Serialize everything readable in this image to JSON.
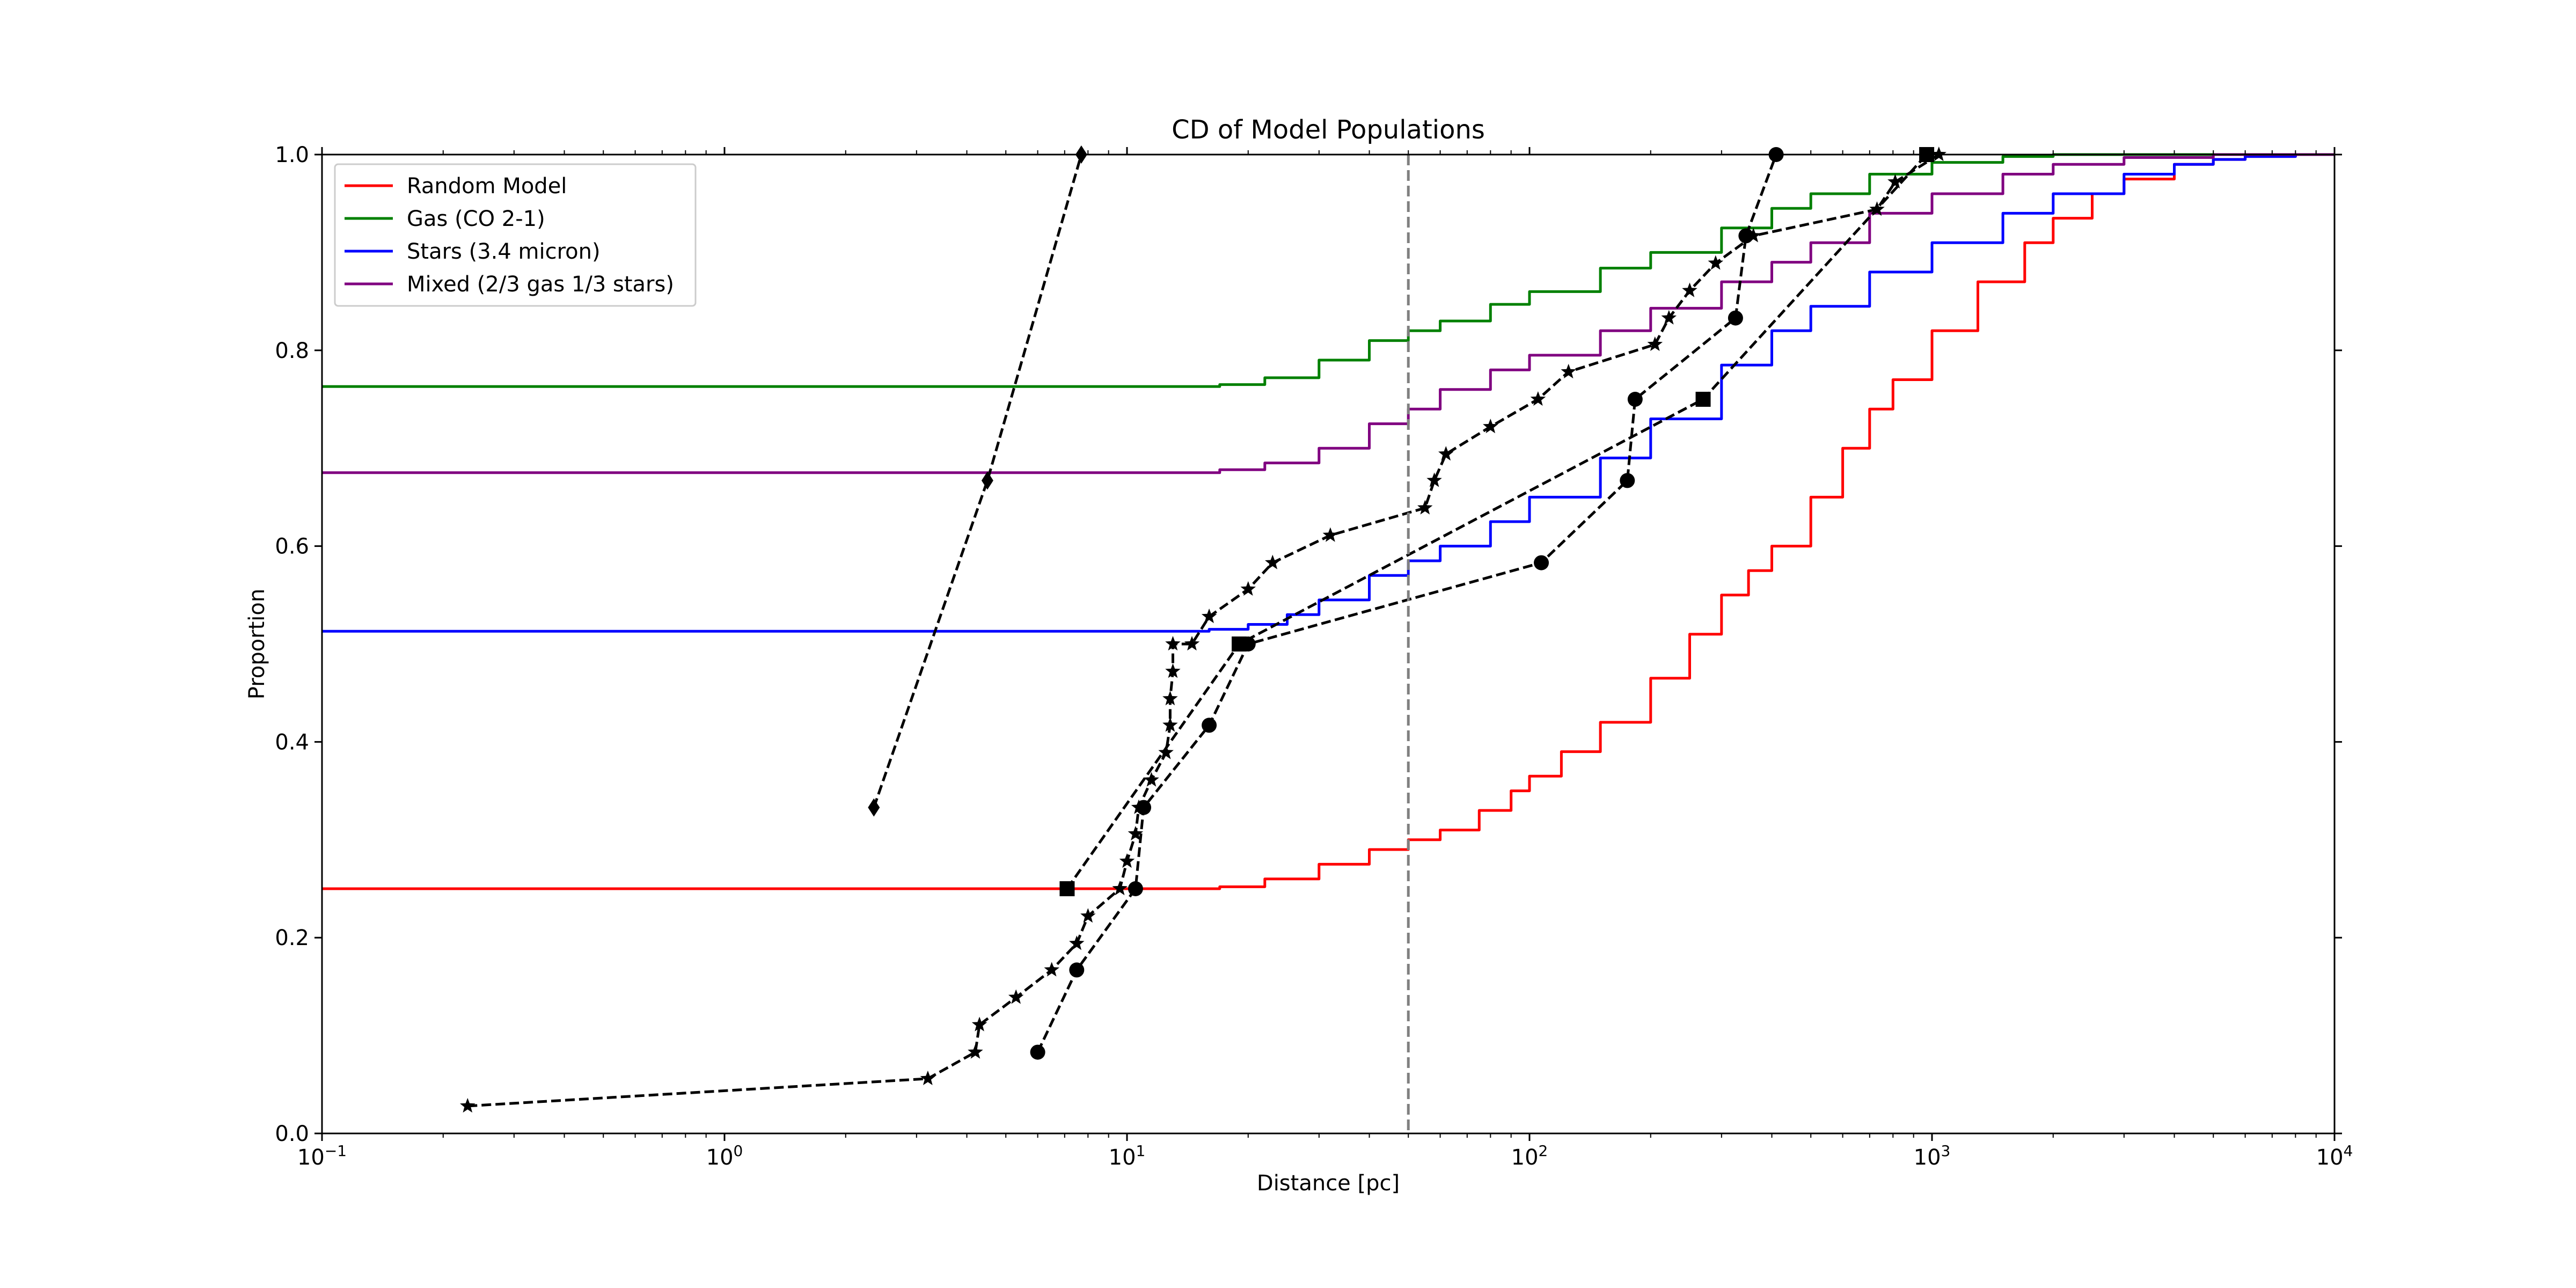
{
  "chart_data": {
    "type": "line",
    "title": "CD of Model Populations",
    "xlabel": "Distance [pc]",
    "ylabel": "Proportion",
    "xscale": "log",
    "xlim": [
      0.1,
      10000
    ],
    "ylim": [
      0.0,
      1.0
    ],
    "x_ticks": [
      {
        "value": 0.1,
        "base": "10",
        "exp": "−1"
      },
      {
        "value": 1,
        "base": "10",
        "exp": "0"
      },
      {
        "value": 10,
        "base": "10",
        "exp": "1"
      },
      {
        "value": 100,
        "base": "10",
        "exp": "2"
      },
      {
        "value": 1000,
        "base": "10",
        "exp": "3"
      },
      {
        "value": 10000,
        "base": "10",
        "exp": "4"
      }
    ],
    "y_ticks": [
      {
        "value": 0.0,
        "label": "0.0"
      },
      {
        "value": 0.2,
        "label": "0.2"
      },
      {
        "value": 0.4,
        "label": "0.4"
      },
      {
        "value": 0.6,
        "label": "0.6"
      },
      {
        "value": 0.8,
        "label": "0.8"
      },
      {
        "value": 1.0,
        "label": "1.0"
      }
    ],
    "grid": false,
    "legend_position": "top-left",
    "reference_line": {
      "x": 50,
      "color": "#808080",
      "style": "dashed"
    },
    "series": [
      {
        "name": "Random Model",
        "color": "#ff0000",
        "x": [
          0.1,
          12,
          17,
          22,
          30,
          40,
          50,
          60,
          75,
          90,
          100,
          120,
          150,
          200,
          250,
          300,
          350,
          400,
          500,
          600,
          700,
          800,
          1000,
          1300,
          1700,
          2000,
          2500,
          3000,
          4000,
          5000,
          6000,
          8000,
          10000
        ],
        "y": [
          0.25,
          0.25,
          0.252,
          0.26,
          0.275,
          0.29,
          0.3,
          0.31,
          0.33,
          0.35,
          0.365,
          0.39,
          0.42,
          0.465,
          0.51,
          0.55,
          0.575,
          0.6,
          0.65,
          0.7,
          0.74,
          0.77,
          0.82,
          0.87,
          0.91,
          0.935,
          0.96,
          0.975,
          0.99,
          0.995,
          0.998,
          1.0,
          1.0
        ]
      },
      {
        "name": "Gas (CO 2-1)",
        "color": "#008000",
        "x": [
          0.1,
          12,
          17,
          22,
          30,
          40,
          50,
          60,
          80,
          100,
          150,
          200,
          300,
          400,
          500,
          700,
          1000,
          1500,
          2000,
          3000,
          5000,
          10000
        ],
        "y": [
          0.763,
          0.763,
          0.765,
          0.772,
          0.79,
          0.81,
          0.82,
          0.83,
          0.847,
          0.86,
          0.884,
          0.9,
          0.925,
          0.945,
          0.96,
          0.98,
          0.992,
          0.998,
          1.0,
          1.0,
          1.0,
          1.0
        ]
      },
      {
        "name": "Stars (3.4 micron)",
        "color": "#0000ff",
        "x": [
          0.1,
          12,
          16,
          20,
          25,
          30,
          40,
          50,
          60,
          80,
          100,
          150,
          200,
          300,
          400,
          500,
          700,
          1000,
          1500,
          2000,
          3000,
          4000,
          5000,
          6000,
          8000,
          10000
        ],
        "y": [
          0.513,
          0.513,
          0.515,
          0.52,
          0.53,
          0.545,
          0.57,
          0.585,
          0.6,
          0.625,
          0.65,
          0.69,
          0.73,
          0.785,
          0.82,
          0.845,
          0.88,
          0.91,
          0.94,
          0.96,
          0.98,
          0.99,
          0.995,
          0.998,
          1.0,
          1.0
        ]
      },
      {
        "name": "Mixed (2/3 gas 1/3 stars)",
        "color": "#800080",
        "x": [
          0.1,
          12,
          17,
          22,
          30,
          40,
          50,
          60,
          80,
          100,
          150,
          200,
          300,
          400,
          500,
          700,
          1000,
          1500,
          2000,
          3000,
          5000,
          8000,
          10000
        ],
        "y": [
          0.675,
          0.675,
          0.678,
          0.685,
          0.7,
          0.725,
          0.74,
          0.76,
          0.78,
          0.795,
          0.82,
          0.843,
          0.87,
          0.89,
          0.91,
          0.94,
          0.96,
          0.98,
          0.99,
          0.997,
          1.0,
          1.0,
          1.0
        ]
      }
    ],
    "observed_series": [
      {
        "marker": "star",
        "x": [
          0.23,
          3.2,
          4.2,
          4.3,
          5.3,
          6.5,
          7.5,
          8.0,
          9.6,
          10.0,
          10.5,
          10.7,
          11.5,
          12.5,
          12.8,
          12.8,
          13.0,
          13.0,
          14.5,
          16.0,
          20.0,
          23.0,
          32.0,
          55.0,
          58.0,
          62.0,
          80.0,
          105.0,
          125.0,
          205.0,
          222.0,
          250.0,
          290.0,
          360.0,
          730.0,
          810.0,
          1040.0
        ],
        "y": [
          0.028,
          0.056,
          0.083,
          0.111,
          0.139,
          0.167,
          0.194,
          0.222,
          0.25,
          0.278,
          0.306,
          0.333,
          0.361,
          0.389,
          0.417,
          0.444,
          0.472,
          0.5,
          0.5,
          0.528,
          0.556,
          0.583,
          0.611,
          0.639,
          0.667,
          0.694,
          0.722,
          0.75,
          0.778,
          0.806,
          0.833,
          0.861,
          0.889,
          0.917,
          0.944,
          0.972,
          1.0
        ]
      },
      {
        "marker": "circle",
        "x": [
          6.0,
          7.5,
          10.5,
          11.0,
          16.0,
          20.0,
          107.0,
          175.0,
          183.0,
          325.0,
          345.0,
          410.0
        ],
        "y": [
          0.083,
          0.167,
          0.25,
          0.333,
          0.417,
          0.5,
          0.583,
          0.667,
          0.75,
          0.833,
          0.917,
          1.0
        ]
      },
      {
        "marker": "square",
        "x": [
          7.1,
          19.0,
          270.0,
          970.0
        ],
        "y": [
          0.25,
          0.5,
          0.75,
          1.0
        ]
      },
      {
        "marker": "diamond",
        "x": [
          2.35,
          4.5,
          7.7
        ],
        "y": [
          0.333,
          0.667,
          1.0
        ]
      }
    ]
  }
}
